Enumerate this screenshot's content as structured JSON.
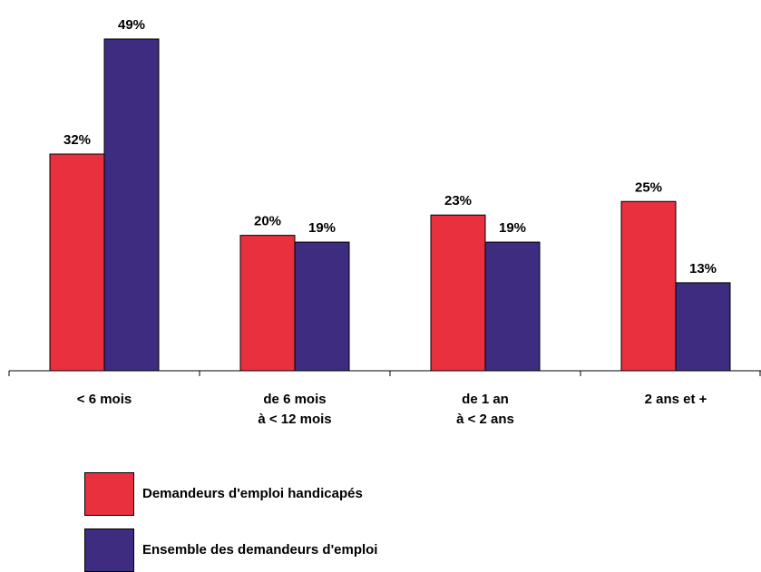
{
  "chart_data": {
    "type": "bar",
    "categories": [
      [
        "< 6 mois"
      ],
      [
        "de 6 mois",
        "à < 12 mois"
      ],
      [
        "de 1 an",
        "à <  2 ans"
      ],
      [
        "2 ans et +"
      ]
    ],
    "series": [
      {
        "name": "Demandeurs d'emploi handicapés",
        "color": "#e8303f",
        "values": [
          32,
          20,
          23,
          25
        ],
        "labels": [
          "32%",
          "20%",
          "23%",
          "25%"
        ]
      },
      {
        "name": "Ensemble des demandeurs d'emploi",
        "color": "#3d2c80",
        "values": [
          49,
          19,
          19,
          13
        ],
        "labels": [
          "49%",
          "19%",
          "19%",
          "13%"
        ]
      }
    ],
    "ylim": [
      0,
      50
    ],
    "grid": false,
    "legend": "bottom-left"
  }
}
